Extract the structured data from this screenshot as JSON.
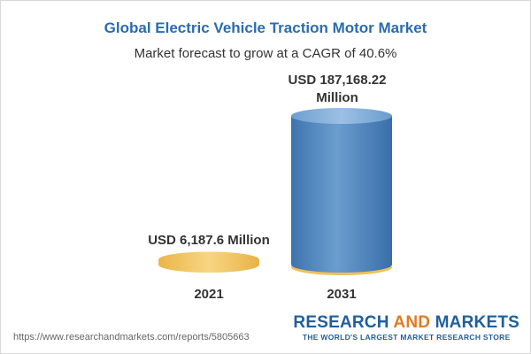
{
  "title": "Global Electric Vehicle Traction Motor Market",
  "subtitle": "Market forecast to grow at a CAGR of 40.6%",
  "chart_data": {
    "type": "bar",
    "categories": [
      "2021",
      "2031"
    ],
    "values": [
      6187.6,
      187168.22
    ],
    "data_labels": [
      [
        "USD 6,187.6 Million"
      ],
      [
        "USD 187,168.22",
        "Million"
      ]
    ],
    "unit": "USD Million",
    "grid": false,
    "legend": "none",
    "colors": [
      "#f2c35a",
      "#5d90c4"
    ],
    "title": "Global Electric Vehicle Traction Motor Market"
  },
  "source_url": "https://www.researchandmarkets.com/reports/5805663",
  "brand": {
    "name_part1": "RESEARCH ",
    "name_and": "AND",
    "name_part2": " MARKETS",
    "tagline": "THE WORLD'S LARGEST MARKET RESEARCH STORE",
    "color": "#1f5f9c",
    "accent": "#e07b21"
  }
}
